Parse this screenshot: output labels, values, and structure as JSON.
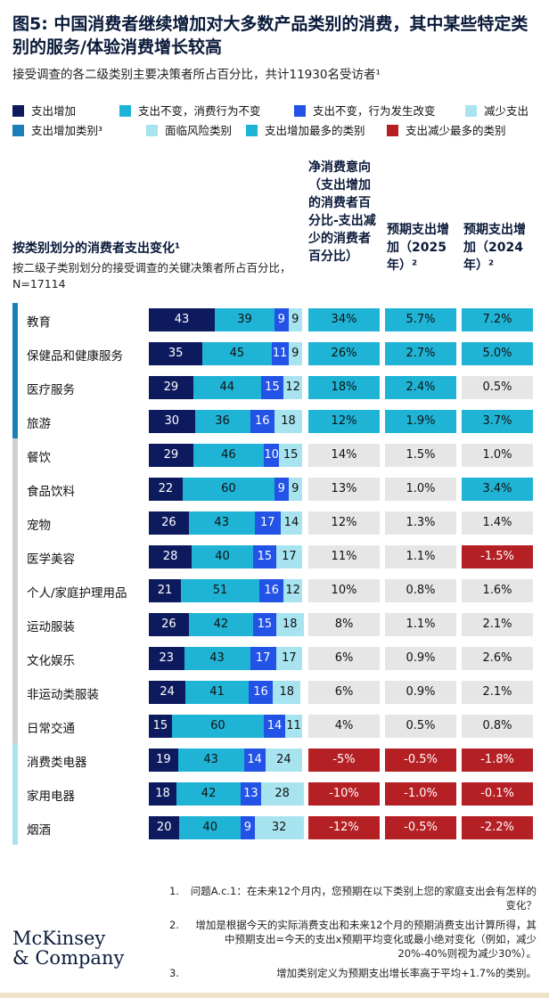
{
  "title": "图5: 中国消费者继续增加对大多数产品类别的消费，其中某些特定类别的服务/体验消费增长较高",
  "subtitle": "接受调查的各二级类别主要决策者所占百分比，共计11930名受访者¹",
  "legend": [
    {
      "label": "支出增加",
      "color": "#0d1b5e"
    },
    {
      "label": "支出不变，消费行为不变",
      "color": "#1fb4d6"
    },
    {
      "label": "支出不变，行为发生改变",
      "color": "#2352e6"
    },
    {
      "label": "减少支出",
      "color": "#a8e4f0"
    },
    {
      "label": "支出增加类别³",
      "color": "#1a7fb8"
    },
    {
      "label": "面临风险类别",
      "color": "#a8e4f0"
    },
    {
      "label": "支出增加最多的类别",
      "color": "#1fb4d6"
    },
    {
      "label": "支出减少最多的类别",
      "color": "#b52025"
    }
  ],
  "left_header": {
    "title": "按类别划分的消费者支出变化¹",
    "subtitle": "按二级子类别划分的接受调查的关键决策者所占百分比，N=17114"
  },
  "columns": {
    "net": "净消费意向（支出增加的消费者百分比-支出减少的消费者百分比）",
    "y2025": "预期支出增加（2025年）²",
    "y2024": "预期支出增加（2024年）²"
  },
  "colors": {
    "increase": "#0d1b5e",
    "same_same": "#1fb4d6",
    "same_change": "#2352e6",
    "decrease": "#a8e4f0",
    "cell_default": "#e6e6e6",
    "cell_high": "#1fb4d6",
    "cell_low": "#b52025",
    "group_increase": "#1a7fb8",
    "group_neutral": "#cfcfcf",
    "group_risk": "#a8e4f0"
  },
  "chart_data": {
    "type": "bar",
    "orientation": "horizontal-stacked",
    "categories": [
      "教育",
      "保健品和健康服务",
      "医疗服务",
      "旅游",
      "餐饮",
      "食品饮料",
      "宠物",
      "医学美容",
      "个人/家庭护理用品",
      "运动服装",
      "文化娱乐",
      "非运动类服装",
      "日常交通",
      "消费类电器",
      "家用电器",
      "烟酒"
    ],
    "groups": [
      "increase",
      "increase",
      "increase",
      "increase",
      "neutral",
      "neutral",
      "neutral",
      "neutral",
      "neutral",
      "neutral",
      "neutral",
      "neutral",
      "neutral",
      "risk",
      "risk",
      "risk"
    ],
    "series": [
      {
        "name": "支出增加",
        "values": [
          43,
          35,
          29,
          30,
          29,
          22,
          26,
          28,
          21,
          26,
          23,
          24,
          15,
          19,
          18,
          20
        ]
      },
      {
        "name": "支出不变，消费行为不变",
        "values": [
          39,
          45,
          44,
          36,
          46,
          60,
          43,
          40,
          51,
          42,
          43,
          41,
          60,
          43,
          42,
          40
        ]
      },
      {
        "name": "支出不变，行为发生改变",
        "values": [
          9,
          11,
          15,
          16,
          10,
          9,
          17,
          15,
          16,
          15,
          17,
          16,
          14,
          14,
          13,
          9
        ]
      },
      {
        "name": "减少支出",
        "values": [
          9,
          9,
          12,
          18,
          15,
          9,
          14,
          17,
          12,
          18,
          17,
          18,
          11,
          24,
          28,
          32
        ]
      }
    ],
    "xlim": [
      0,
      100
    ],
    "table": {
      "net": [
        "34%",
        "26%",
        "18%",
        "12%",
        "14%",
        "13%",
        "12%",
        "11%",
        "10%",
        "8%",
        "6%",
        "6%",
        "4%",
        "-5%",
        "-10%",
        "-12%"
      ],
      "y2025": [
        "5.7%",
        "2.7%",
        "2.4%",
        "1.9%",
        "1.5%",
        "1.0%",
        "1.3%",
        "1.1%",
        "0.8%",
        "1.1%",
        "0.9%",
        "0.9%",
        "0.5%",
        "-0.5%",
        "-1.0%",
        "-0.5%"
      ],
      "y2024": [
        "7.2%",
        "5.0%",
        "0.5%",
        "3.7%",
        "1.0%",
        "3.4%",
        "1.4%",
        "-1.5%",
        "1.6%",
        "2.1%",
        "2.6%",
        "2.1%",
        "0.8%",
        "-1.8%",
        "-0.1%",
        "-2.2%"
      ],
      "net_style": [
        "high",
        "high",
        "high",
        "high",
        "default",
        "default",
        "default",
        "default",
        "default",
        "default",
        "default",
        "default",
        "default",
        "low",
        "low",
        "low"
      ],
      "y2025_style": [
        "high",
        "high",
        "high",
        "high",
        "default",
        "default",
        "default",
        "default",
        "default",
        "default",
        "default",
        "default",
        "default",
        "low",
        "low",
        "low"
      ],
      "y2024_style": [
        "high",
        "high",
        "default",
        "high",
        "default",
        "high",
        "default",
        "low",
        "default",
        "default",
        "default",
        "default",
        "default",
        "low",
        "low",
        "low"
      ]
    }
  },
  "footnotes": [
    {
      "num": "1.",
      "text": "问题A.c.1：在未来12个月内，您预期在以下类别上您的家庭支出会有怎样的变化？"
    },
    {
      "num": "2.",
      "text": "增加是根据今天的实际消费支出和未来12个月的预期消费支出计算所得，其中预期支出=今天的支出x预期平均变化或最小绝对变化（例如，减少20%-40%则视为减少30%）。"
    },
    {
      "num": "3.",
      "text": "增加类别定义为预期支出增长率高于平均+1.7%的类别。"
    }
  ],
  "logo": {
    "line1": "McKinsey",
    "line2": "& Company"
  }
}
